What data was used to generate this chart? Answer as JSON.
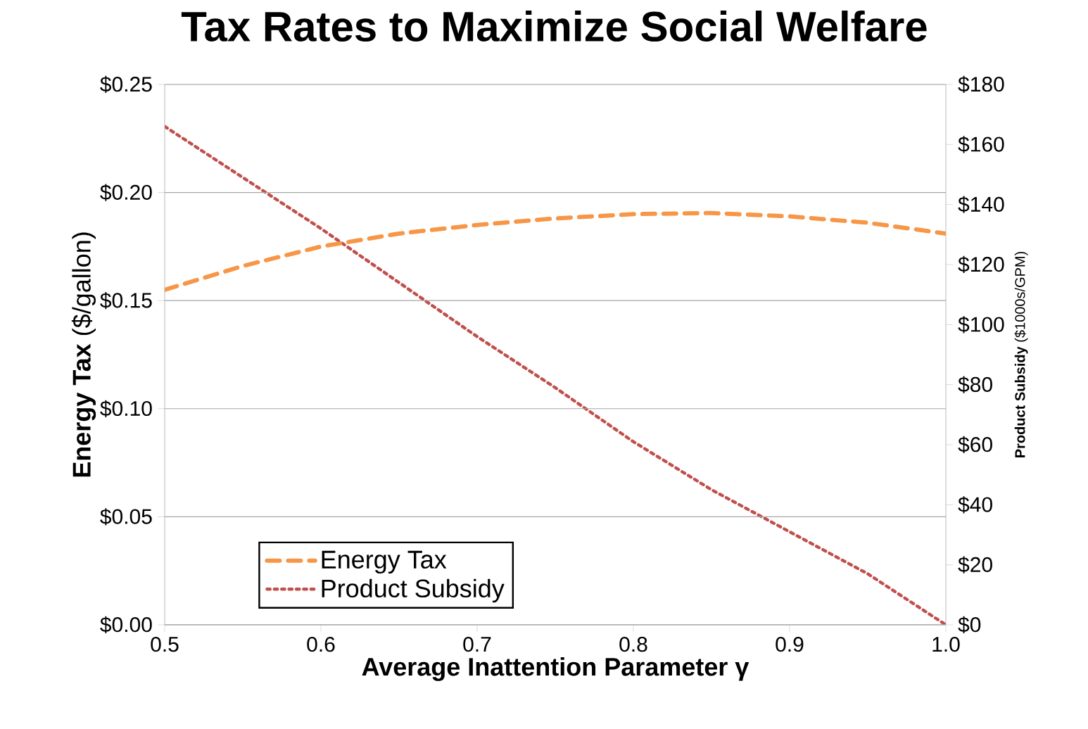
{
  "chart_data": {
    "type": "line",
    "title": "Tax Rates to Maximize Social Welfare",
    "xlabel": "**Average Inattention Parameter γ**",
    "ylabel": "**Energy Tax** ($/gallon)",
    "y2label": "**Product Subsidy** ($1000s/GPM)",
    "xlim": [
      0.5,
      1.0
    ],
    "xticks": [
      {
        "value": 0.5,
        "label": "0.5"
      },
      {
        "value": 0.6,
        "label": "0.6"
      },
      {
        "value": 0.7,
        "label": "0.7"
      },
      {
        "value": 0.8,
        "label": "0.8"
      },
      {
        "value": 0.9,
        "label": "0.9"
      },
      {
        "value": 1.0,
        "label": "1.0"
      }
    ],
    "ylim": [
      0,
      0.25
    ],
    "yticks": [
      {
        "value": 0,
        "label": "$0.00"
      },
      {
        "value": 0.05,
        "label": "$0.05"
      },
      {
        "value": 0.1,
        "label": "$0.10"
      },
      {
        "value": 0.15,
        "label": "$0.15"
      },
      {
        "value": 0.2,
        "label": "$0.20"
      },
      {
        "value": 0.25,
        "label": "$0.25"
      }
    ],
    "y2lim": [
      0,
      180
    ],
    "y2ticks": [
      {
        "value": 0,
        "label": "$0"
      },
      {
        "value": 20,
        "label": "$20"
      },
      {
        "value": 40,
        "label": "$40"
      },
      {
        "value": 60,
        "label": "$60"
      },
      {
        "value": 80,
        "label": "$80"
      },
      {
        "value": 100,
        "label": "$100"
      },
      {
        "value": 120,
        "label": "$120"
      },
      {
        "value": 140,
        "label": "$140"
      },
      {
        "value": 160,
        "label": "$160"
      },
      {
        "value": 180,
        "label": "$180"
      }
    ],
    "grid": "y",
    "legend": "bottom left",
    "series": [
      {
        "name": "Energy Tax",
        "color": "#f79646",
        "line_style": "dashed",
        "x": [
          0.5,
          0.55,
          0.6,
          0.65,
          0.7,
          0.75,
          0.8,
          0.85,
          0.9,
          0.95,
          1.0
        ],
        "values": [
          0.155,
          0.166,
          0.175,
          0.181,
          0.185,
          0.188,
          0.19,
          0.1905,
          0.189,
          0.186,
          0.181
        ]
      },
      {
        "name": "Product Subsidy",
        "color": "#c0504d",
        "line_style": "dotted",
        "axis": "y2",
        "x": [
          0.5,
          0.55,
          0.6,
          0.65,
          0.7,
          0.75,
          0.8,
          0.85,
          0.9,
          0.95,
          1.0
        ],
        "values": [
          166,
          149,
          132,
          114,
          96,
          79,
          61,
          45,
          31,
          17,
          0
        ]
      }
    ]
  }
}
